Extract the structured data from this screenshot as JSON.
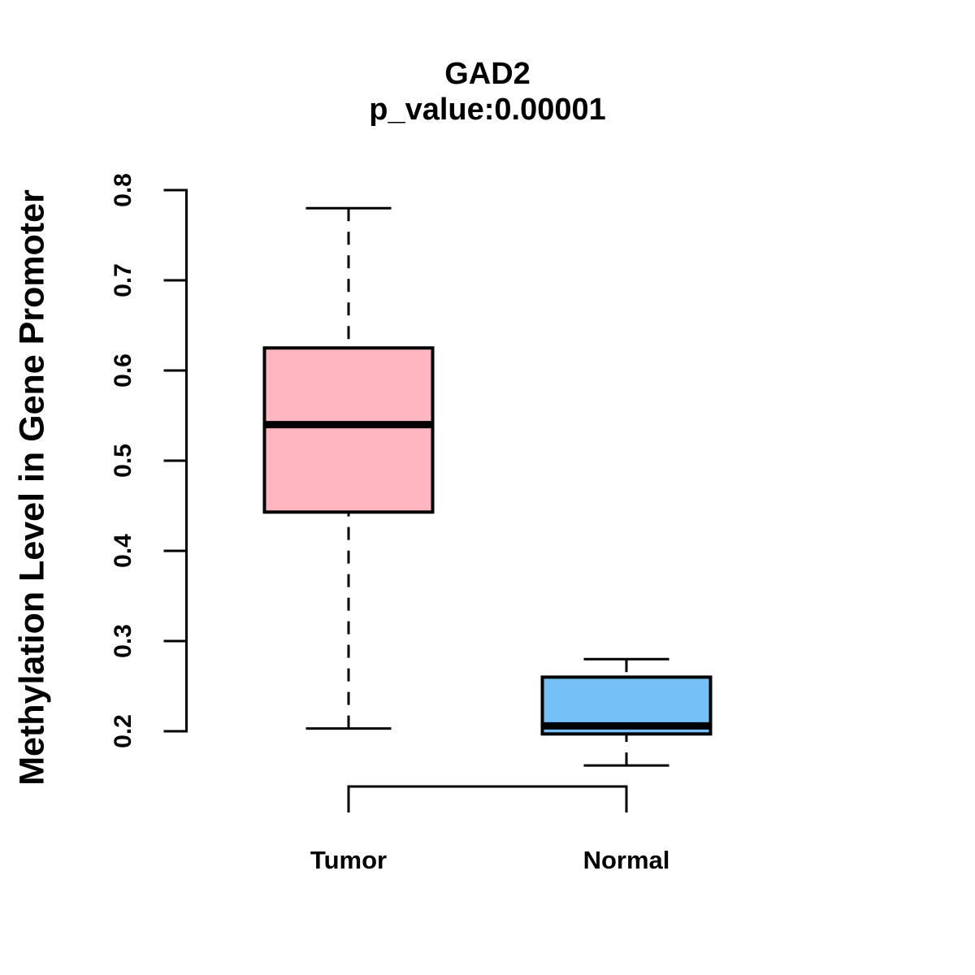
{
  "chart_data": {
    "type": "boxplot",
    "title": "GAD2",
    "subtitle": "p_value:0.00001",
    "ylabel": "Methylation Level in Gene Promoter",
    "xlabel": "",
    "ylim": [
      0.2,
      0.8
    ],
    "yticks": [
      0.8,
      0.7,
      0.6,
      0.5,
      0.4,
      0.3,
      0.2
    ],
    "ytick_labels": [
      "0.8",
      "0.7",
      "0.6",
      "0.5",
      "0.4",
      "0.3",
      "0.2"
    ],
    "grid": false,
    "legend": "none",
    "groups": [
      {
        "label": "Tumor",
        "fill_color": "#FFB6C1",
        "stats": {
          "whisker_low": 0.203,
          "q1": 0.443,
          "median": 0.54,
          "q3": 0.625,
          "whisker_high": 0.78
        }
      },
      {
        "label": "Normal",
        "fill_color": "#74C0F7",
        "stats": {
          "whisker_low": 0.162,
          "q1": 0.197,
          "median": 0.206,
          "q3": 0.26,
          "whisker_high": 0.28
        }
      }
    ],
    "comparison_bracket": {
      "between": [
        "Tumor",
        "Normal"
      ]
    },
    "style": {
      "box_border_color": "#000000",
      "median_color": "#000000",
      "whisker_style": "dashed",
      "axis_color": "#000000",
      "text_color": "#000000",
      "background": "#FFFFFF"
    }
  }
}
